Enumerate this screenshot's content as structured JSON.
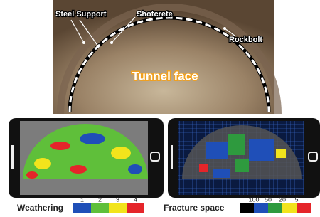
{
  "photo": {
    "labels": {
      "steel_support": "Steel Support",
      "shotcrete": "Shotcrete",
      "rockbolt": "Rockbolt",
      "tunnel_face": "Tunnel face"
    }
  },
  "legends": [
    {
      "title": "Weathering",
      "labels": [
        "1",
        "2",
        "3",
        "4"
      ],
      "colors": [
        "#1f4fb8",
        "#5fbf3a",
        "#f2e41c",
        "#e5252a"
      ]
    },
    {
      "title": "Fracture space",
      "labels": [
        "100",
        "50",
        "20",
        "5"
      ],
      "colors": [
        "#000000",
        "#1f4fb8",
        "#2e9a3e",
        "#f2e41c",
        "#e5252a"
      ]
    }
  ]
}
